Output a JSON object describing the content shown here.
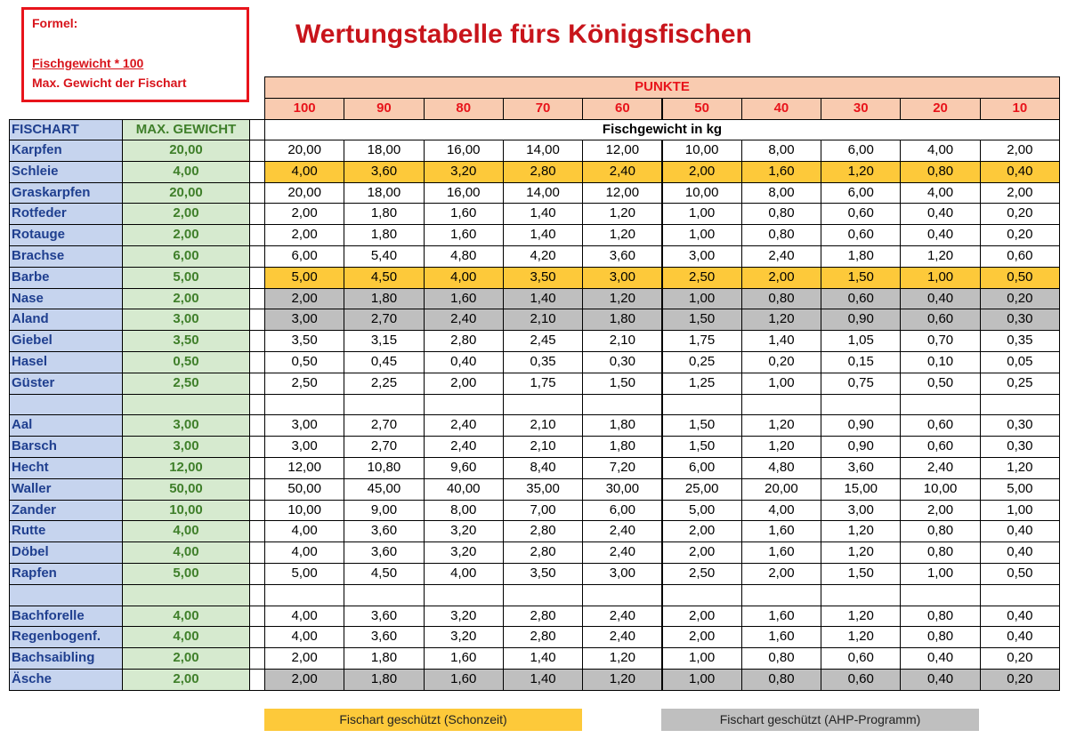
{
  "formula": {
    "label": "Formel:",
    "numerator": "Fischgewicht * 100",
    "denominator": "Max. Gewicht der Fischart"
  },
  "title": "Wertungstabelle fürs Königsfischen",
  "table": {
    "points_label": "PUNKTE",
    "points": [
      "100",
      "90",
      "80",
      "70",
      "60",
      "50",
      "40",
      "30",
      "20",
      "10"
    ],
    "col_fish": "FISCHART",
    "col_max": "MAX. GEWICHT",
    "weight_label": "Fischgewicht in kg",
    "rows": [
      {
        "name": "Karpfen",
        "max": "20,00",
        "values": [
          "20,00",
          "18,00",
          "16,00",
          "14,00",
          "12,00",
          "10,00",
          "8,00",
          "6,00",
          "4,00",
          "2,00"
        ]
      },
      {
        "name": "Schleie",
        "max": "4,00",
        "values": [
          "4,00",
          "3,60",
          "3,20",
          "2,80",
          "2,40",
          "2,00",
          "1,60",
          "1,20",
          "0,80",
          "0,40"
        ],
        "fill": "#fdc93a"
      },
      {
        "name": "Graskarpfen",
        "max": "20,00",
        "values": [
          "20,00",
          "18,00",
          "16,00",
          "14,00",
          "12,00",
          "10,00",
          "8,00",
          "6,00",
          "4,00",
          "2,00"
        ]
      },
      {
        "name": "Rotfeder",
        "max": "2,00",
        "values": [
          "2,00",
          "1,80",
          "1,60",
          "1,40",
          "1,20",
          "1,00",
          "0,80",
          "0,60",
          "0,40",
          "0,20"
        ]
      },
      {
        "name": "Rotauge",
        "max": "2,00",
        "values": [
          "2,00",
          "1,80",
          "1,60",
          "1,40",
          "1,20",
          "1,00",
          "0,80",
          "0,60",
          "0,40",
          "0,20"
        ]
      },
      {
        "name": "Brachse",
        "max": "6,00",
        "values": [
          "6,00",
          "5,40",
          "4,80",
          "4,20",
          "3,60",
          "3,00",
          "2,40",
          "1,80",
          "1,20",
          "0,60"
        ]
      },
      {
        "name": "Barbe",
        "max": "5,00",
        "values": [
          "5,00",
          "4,50",
          "4,00",
          "3,50",
          "3,00",
          "2,50",
          "2,00",
          "1,50",
          "1,00",
          "0,50"
        ],
        "fill": "#fdc93a"
      },
      {
        "name": "Nase",
        "max": "2,00",
        "values": [
          "2,00",
          "1,80",
          "1,60",
          "1,40",
          "1,20",
          "1,00",
          "0,80",
          "0,60",
          "0,40",
          "0,20"
        ],
        "fill": "#bfbfbf"
      },
      {
        "name": "Aland",
        "max": "3,00",
        "values": [
          "3,00",
          "2,70",
          "2,40",
          "2,10",
          "1,80",
          "1,50",
          "1,20",
          "0,90",
          "0,60",
          "0,30"
        ],
        "fill": "#bfbfbf"
      },
      {
        "name": "Giebel",
        "max": "3,50",
        "values": [
          "3,50",
          "3,15",
          "2,80",
          "2,45",
          "2,10",
          "1,75",
          "1,40",
          "1,05",
          "0,70",
          "0,35"
        ]
      },
      {
        "name": "Hasel",
        "max": "0,50",
        "values": [
          "0,50",
          "0,45",
          "0,40",
          "0,35",
          "0,30",
          "0,25",
          "0,20",
          "0,15",
          "0,10",
          "0,05"
        ]
      },
      {
        "name": "Güster",
        "max": "2,50",
        "values": [
          "2,50",
          "2,25",
          "2,00",
          "1,75",
          "1,50",
          "1,25",
          "1,00",
          "0,75",
          "0,50",
          "0,25"
        ]
      },
      null,
      {
        "name": "Aal",
        "max": "3,00",
        "values": [
          "3,00",
          "2,70",
          "2,40",
          "2,10",
          "1,80",
          "1,50",
          "1,20",
          "0,90",
          "0,60",
          "0,30"
        ]
      },
      {
        "name": "Barsch",
        "max": "3,00",
        "values": [
          "3,00",
          "2,70",
          "2,40",
          "2,10",
          "1,80",
          "1,50",
          "1,20",
          "0,90",
          "0,60",
          "0,30"
        ]
      },
      {
        "name": "Hecht",
        "max": "12,00",
        "values": [
          "12,00",
          "10,80",
          "9,60",
          "8,40",
          "7,20",
          "6,00",
          "4,80",
          "3,60",
          "2,40",
          "1,20"
        ]
      },
      {
        "name": "Waller",
        "max": "50,00",
        "values": [
          "50,00",
          "45,00",
          "40,00",
          "35,00",
          "30,00",
          "25,00",
          "20,00",
          "15,00",
          "10,00",
          "5,00"
        ]
      },
      {
        "name": "Zander",
        "max": "10,00",
        "values": [
          "10,00",
          "9,00",
          "8,00",
          "7,00",
          "6,00",
          "5,00",
          "4,00",
          "3,00",
          "2,00",
          "1,00"
        ]
      },
      {
        "name": "Rutte",
        "max": "4,00",
        "values": [
          "4,00",
          "3,60",
          "3,20",
          "2,80",
          "2,40",
          "2,00",
          "1,60",
          "1,20",
          "0,80",
          "0,40"
        ]
      },
      {
        "name": "Döbel",
        "max": "4,00",
        "values": [
          "4,00",
          "3,60",
          "3,20",
          "2,80",
          "2,40",
          "2,00",
          "1,60",
          "1,20",
          "0,80",
          "0,40"
        ]
      },
      {
        "name": "Rapfen",
        "max": "5,00",
        "values": [
          "5,00",
          "4,50",
          "4,00",
          "3,50",
          "3,00",
          "2,50",
          "2,00",
          "1,50",
          "1,00",
          "0,50"
        ]
      },
      null,
      {
        "name": "Bachforelle",
        "max": "4,00",
        "values": [
          "4,00",
          "3,60",
          "3,20",
          "2,80",
          "2,40",
          "2,00",
          "1,60",
          "1,20",
          "0,80",
          "0,40"
        ]
      },
      {
        "name": "Regenbogenf.",
        "max": "4,00",
        "values": [
          "4,00",
          "3,60",
          "3,20",
          "2,80",
          "2,40",
          "2,00",
          "1,60",
          "1,20",
          "0,80",
          "0,40"
        ]
      },
      {
        "name": "Bachsaibling",
        "max": "2,00",
        "values": [
          "2,00",
          "1,80",
          "1,60",
          "1,40",
          "1,20",
          "1,00",
          "0,80",
          "0,60",
          "0,40",
          "0,20"
        ]
      },
      {
        "name": "Äsche",
        "max": "2,00",
        "values": [
          "2,00",
          "1,80",
          "1,60",
          "1,40",
          "1,20",
          "1,00",
          "0,80",
          "0,60",
          "0,40",
          "0,20"
        ],
        "fill": "#bfbfbf"
      }
    ]
  },
  "legend": [
    {
      "label": "Fischart geschützt (Schonzeit)",
      "color": "#fdc93a"
    },
    {
      "label": "Fischart geschützt (AHP-Programm)",
      "color": "#bfbfbf"
    }
  ]
}
